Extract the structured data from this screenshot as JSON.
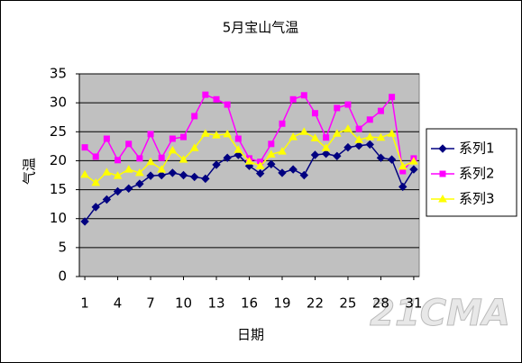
{
  "chart_data": {
    "type": "line",
    "title": "5月宝山气温",
    "x_label": "日期",
    "y_label": "气温",
    "x": [
      1,
      2,
      3,
      4,
      5,
      6,
      7,
      8,
      9,
      10,
      11,
      12,
      13,
      14,
      15,
      16,
      17,
      18,
      19,
      20,
      21,
      22,
      23,
      24,
      25,
      26,
      27,
      28,
      29,
      30,
      31
    ],
    "xlim": [
      0.5,
      31.5
    ],
    "xticks": [
      1,
      4,
      7,
      10,
      13,
      16,
      19,
      22,
      25,
      28,
      31
    ],
    "ylim": [
      0,
      35
    ],
    "yticks": [
      0,
      5,
      10,
      15,
      20,
      25,
      30,
      35
    ],
    "grid": true,
    "legend": "right",
    "series": [
      {
        "name": "系列1",
        "color": "#000080",
        "marker": "diamond",
        "values": [
          9.5,
          12,
          13.3,
          14.7,
          15.2,
          16,
          17.4,
          17.5,
          17.9,
          17.5,
          17.2,
          16.9,
          19.3,
          20.5,
          21,
          19.1,
          17.8,
          19.4,
          17.9,
          18.5,
          17.5,
          21,
          21.2,
          20.8,
          22.3,
          22.6,
          22.8,
          20.5,
          20.2,
          15.5,
          18.5
        ]
      },
      {
        "name": "系列2",
        "color": "#ff00ff",
        "marker": "square",
        "values": [
          22.3,
          20.7,
          23.8,
          20.1,
          22.9,
          20.4,
          24.6,
          20.5,
          23.8,
          24.1,
          27.7,
          31.4,
          30.6,
          29.7,
          23.8,
          20.4,
          19.8,
          22.9,
          26.4,
          30.6,
          31.3,
          28.2,
          24,
          29.1,
          29.7,
          25.5,
          27.1,
          28.6,
          31,
          18.2,
          20.4
        ]
      },
      {
        "name": "系列3",
        "color": "#ffff00",
        "marker": "triangle",
        "values": [
          17.6,
          16.2,
          18,
          17.4,
          18.5,
          17.9,
          19.8,
          18.5,
          21.8,
          20.2,
          22.2,
          24.7,
          24.4,
          24.6,
          21.9,
          19.9,
          19.1,
          21.1,
          21.6,
          24.1,
          25,
          23.9,
          22.2,
          24.7,
          25.5,
          23.6,
          24.1,
          24,
          24.7,
          19,
          19.9
        ]
      }
    ],
    "watermark": "21CMA"
  }
}
